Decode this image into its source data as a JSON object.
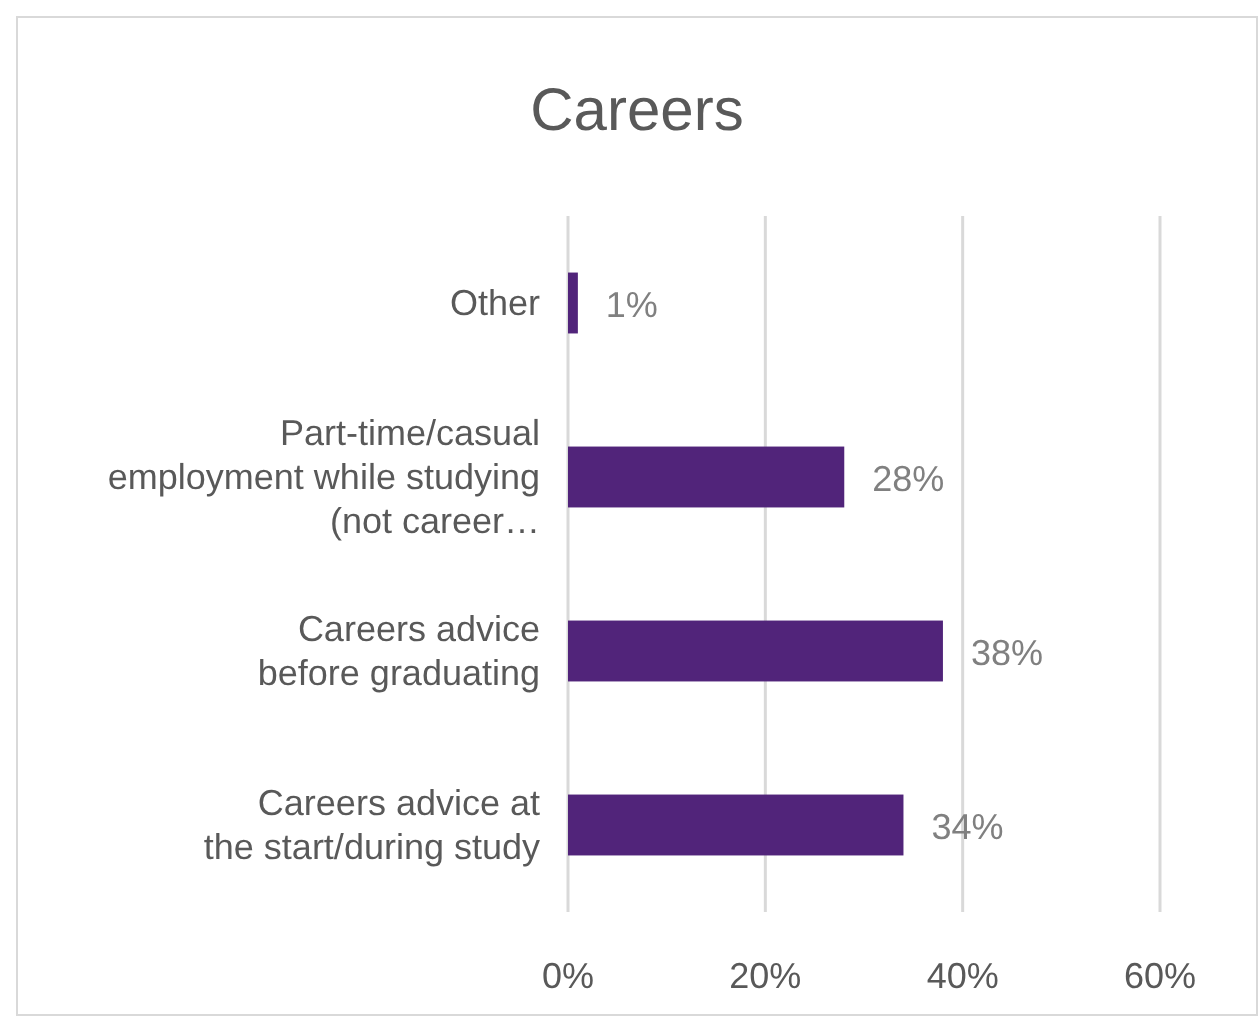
{
  "chart_data": {
    "type": "bar",
    "orientation": "horizontal",
    "title": "Careers",
    "categories": [
      "Other",
      "Part-time/casual employment while studying (not career…",
      "Careers advice before graduating",
      "Careers advice at the start/during study"
    ],
    "values": [
      1,
      28,
      38,
      34
    ],
    "value_labels": [
      "1%",
      "28%",
      "38%",
      "34%"
    ],
    "color": "#51247a",
    "xlim": [
      0,
      60
    ],
    "xticks": [
      {
        "value": 0,
        "label": "0%"
      },
      {
        "value": 20,
        "label": "20%"
      },
      {
        "value": 40,
        "label": "40%"
      },
      {
        "value": 60,
        "label": "60%"
      }
    ],
    "grid": "x"
  }
}
